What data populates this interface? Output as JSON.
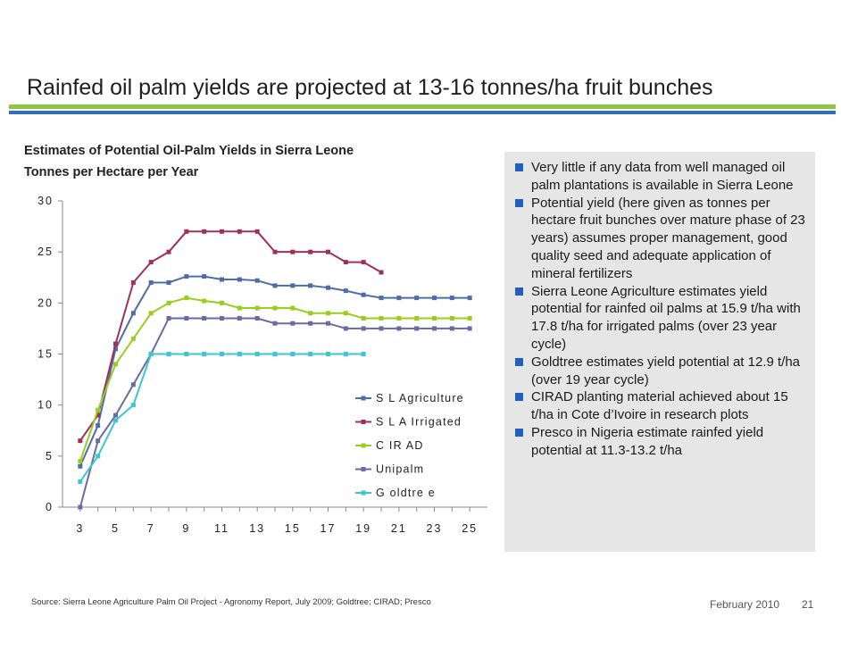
{
  "slide": {
    "title": "Rainfed oil palm yields are projected at 13-16 tonnes/ha fruit bunches",
    "source": "Source: Sierra Leone Agriculture Palm Oil Project - Agronomy Report, July 2009; Goldtree; CIRAD; Presco",
    "date": "February 2010",
    "page": "21",
    "accent_green": "#8dc63f",
    "accent_blue": "#2f6fb5"
  },
  "bullets": [
    "Very little if any data from well managed oil palm plantations is available in Sierra Leone",
    "Potential yield (here given as tonnes per hectare fruit bunches over mature phase of 23 years) assumes proper management, good quality seed and adequate application of mineral fertilizers",
    "Sierra Leone Agriculture estimates yield potential for rainfed oil palms at 15.9 t/ha with 17.8 t/ha for irrigated palms (over 23 year cycle)",
    "Goldtree estimates yield potential at 12.9 t/ha (over 19 year cycle)",
    "CIRAD planting material achieved about 15 t/ha in Cote d’Ivoire in research plots",
    "Presco in Nigeria estimate rainfed yield potential at 11.3-13.2 t/ha"
  ],
  "chart_data": {
    "type": "line",
    "title": "Estimates of Potential Oil-Palm Yields in Sierra Leone",
    "subtitle": "Tonnes per Hectare per Year",
    "xlabel": "",
    "ylabel": "",
    "ylim": [
      0,
      30
    ],
    "yticks": [
      0,
      5,
      10,
      15,
      20,
      25,
      30
    ],
    "xlim": [
      3,
      25
    ],
    "xticks": [
      3,
      5,
      7,
      9,
      11,
      13,
      15,
      17,
      19,
      21,
      23,
      25
    ],
    "grid": false,
    "legend_position": "right-middle",
    "series": [
      {
        "name": "S L Agriculture",
        "color": "#4f6ca8",
        "x": [
          3,
          4,
          5,
          6,
          7,
          8,
          9,
          10,
          11,
          12,
          13,
          14,
          15,
          16,
          17,
          18,
          19,
          20,
          21,
          22,
          23,
          24,
          25
        ],
        "values": [
          4,
          8,
          15.5,
          19,
          22,
          22,
          22.6,
          22.6,
          22.3,
          22.3,
          22.2,
          21.7,
          21.7,
          21.7,
          21.5,
          21.2,
          20.8,
          20.5,
          20.5,
          20.5,
          20.5,
          20.5,
          20.5
        ]
      },
      {
        "name": "S L A Irrigated",
        "color": "#a0305a",
        "x": [
          3,
          4,
          5,
          6,
          7,
          8,
          9,
          10,
          11,
          12,
          13,
          14,
          15,
          16,
          17,
          18,
          19,
          20
        ],
        "values": [
          6.5,
          9,
          16,
          22,
          24,
          25,
          27,
          27,
          27,
          27,
          27,
          25,
          25,
          25,
          25,
          24,
          24,
          23
        ]
      },
      {
        "name": "C IR AD",
        "color": "#9acd1f",
        "x": [
          3,
          4,
          5,
          6,
          7,
          8,
          9,
          10,
          11,
          12,
          13,
          14,
          15,
          16,
          17,
          18,
          19,
          20,
          21,
          22,
          23,
          24,
          25
        ],
        "values": [
          4.5,
          9.5,
          14,
          16.5,
          19,
          20,
          20.5,
          20.2,
          20,
          19.5,
          19.5,
          19.5,
          19.5,
          19,
          19,
          19,
          18.5,
          18.5,
          18.5,
          18.5,
          18.5,
          18.5,
          18.5
        ]
      },
      {
        "name": "Unipalm",
        "color": "#6a6aa6",
        "x": [
          3,
          4,
          5,
          6,
          7,
          8,
          9,
          10,
          11,
          12,
          13,
          14,
          15,
          16,
          17,
          18,
          19,
          20,
          21,
          22,
          23,
          24,
          25
        ],
        "values": [
          0,
          6.5,
          9,
          12,
          15,
          18.5,
          18.5,
          18.5,
          18.5,
          18.5,
          18.5,
          18,
          18,
          18,
          18,
          17.5,
          17.5,
          17.5,
          17.5,
          17.5,
          17.5,
          17.5,
          17.5
        ]
      },
      {
        "name": "G oldtre e",
        "color": "#3cc6d0",
        "x": [
          3,
          4,
          5,
          6,
          7,
          8,
          9,
          10,
          11,
          12,
          13,
          14,
          15,
          16,
          17,
          18,
          19
        ],
        "values": [
          2.5,
          5,
          8.5,
          10,
          15,
          15,
          15,
          15,
          15,
          15,
          15,
          15,
          15,
          15,
          15,
          15,
          15
        ]
      }
    ]
  }
}
